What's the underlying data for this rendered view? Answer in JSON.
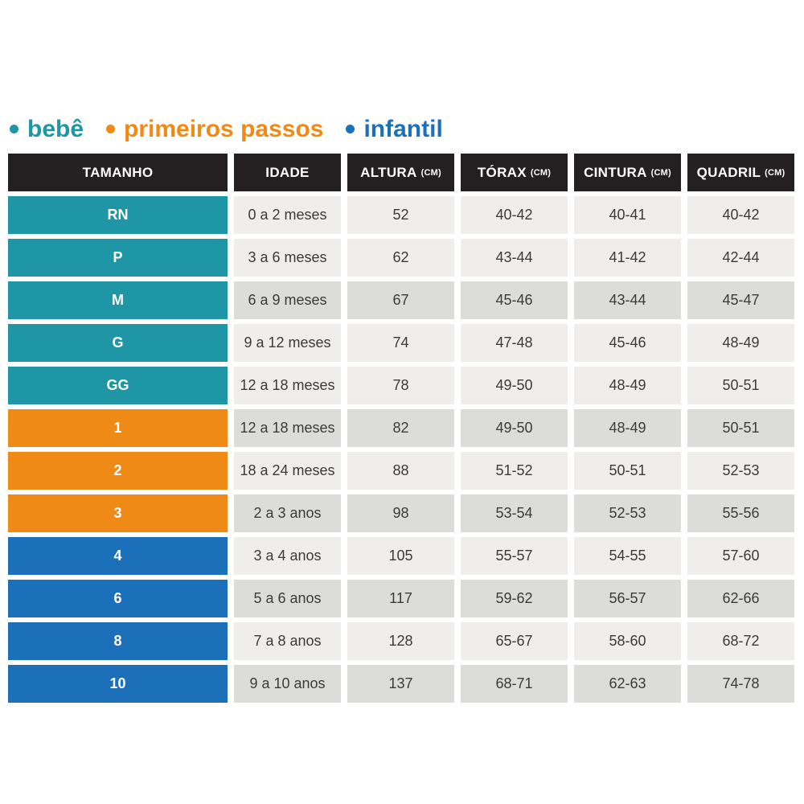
{
  "legend": {
    "items": [
      {
        "label": "bebê",
        "color_key": "bebe"
      },
      {
        "label": "primeiros passos",
        "color_key": "primeiros_passos"
      },
      {
        "label": "infantil",
        "color_key": "infantil"
      }
    ]
  },
  "colors": {
    "bebe": "#1E96A5",
    "primeiros_passos": "#F08A17",
    "infantil": "#1C6FB9",
    "header_bg": "#242021",
    "header_text": "#FFFFFF",
    "cell_light": "#EFEEEC",
    "cell_dark": "#DCDCDA",
    "cell_text": "#3B3B3B"
  },
  "chart_data": {
    "type": "table",
    "columns": [
      {
        "label": "TAMANHO",
        "unit": ""
      },
      {
        "label": "IDADE",
        "unit": ""
      },
      {
        "label": "ALTURA",
        "unit": "(CM)"
      },
      {
        "label": "TÓRAX",
        "unit": "(CM)"
      },
      {
        "label": "CINTURA",
        "unit": "(CM)"
      },
      {
        "label": "QUADRIL",
        "unit": "(CM)"
      }
    ],
    "rows": [
      {
        "tamanho": "RN",
        "group": "bebe",
        "shade": "light",
        "idade": "0 a 2 meses",
        "altura": "52",
        "torax": "40-42",
        "cintura": "40-41",
        "quadril": "40-42"
      },
      {
        "tamanho": "P",
        "group": "bebe",
        "shade": "light",
        "idade": "3 a 6 meses",
        "altura": "62",
        "torax": "43-44",
        "cintura": "41-42",
        "quadril": "42-44"
      },
      {
        "tamanho": "M",
        "group": "bebe",
        "shade": "dark",
        "idade": "6 a 9 meses",
        "altura": "67",
        "torax": "45-46",
        "cintura": "43-44",
        "quadril": "45-47"
      },
      {
        "tamanho": "G",
        "group": "bebe",
        "shade": "light",
        "idade": "9 a 12 meses",
        "altura": "74",
        "torax": "47-48",
        "cintura": "45-46",
        "quadril": "48-49"
      },
      {
        "tamanho": "GG",
        "group": "bebe",
        "shade": "light",
        "idade": "12 a 18 meses",
        "altura": "78",
        "torax": "49-50",
        "cintura": "48-49",
        "quadril": "50-51"
      },
      {
        "tamanho": "1",
        "group": "primeiros_passos",
        "shade": "dark",
        "idade": "12 a 18 meses",
        "altura": "82",
        "torax": "49-50",
        "cintura": "48-49",
        "quadril": "50-51"
      },
      {
        "tamanho": "2",
        "group": "primeiros_passos",
        "shade": "light",
        "idade": "18 a 24 meses",
        "altura": "88",
        "torax": "51-52",
        "cintura": "50-51",
        "quadril": "52-53"
      },
      {
        "tamanho": "3",
        "group": "primeiros_passos",
        "shade": "dark",
        "idade": "2 a 3 anos",
        "altura": "98",
        "torax": "53-54",
        "cintura": "52-53",
        "quadril": "55-56"
      },
      {
        "tamanho": "4",
        "group": "infantil",
        "shade": "light",
        "idade": "3 a 4 anos",
        "altura": "105",
        "torax": "55-57",
        "cintura": "54-55",
        "quadril": "57-60"
      },
      {
        "tamanho": "6",
        "group": "infantil",
        "shade": "dark",
        "idade": "5 a 6 anos",
        "altura": "117",
        "torax": "59-62",
        "cintura": "56-57",
        "quadril": "62-66"
      },
      {
        "tamanho": "8",
        "group": "infantil",
        "shade": "light",
        "idade": "7 a 8 anos",
        "altura": "128",
        "torax": "65-67",
        "cintura": "58-60",
        "quadril": "68-72"
      },
      {
        "tamanho": "10",
        "group": "infantil",
        "shade": "dark",
        "idade": "9 a 10 anos",
        "altura": "137",
        "torax": "68-71",
        "cintura": "62-63",
        "quadril": "74-78"
      }
    ]
  }
}
